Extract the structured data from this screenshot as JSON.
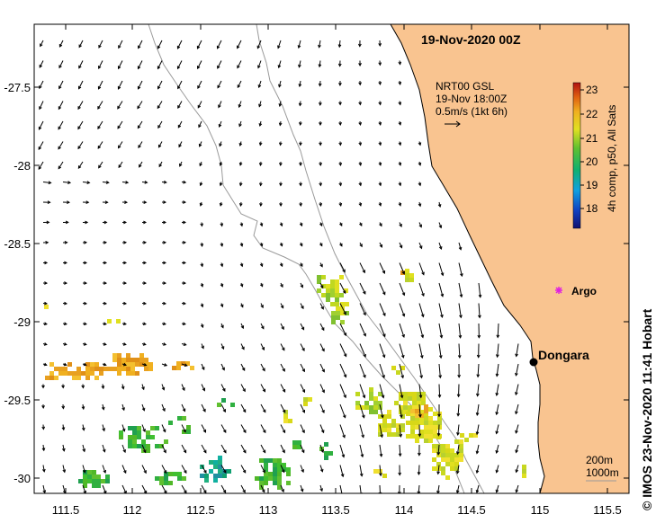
{
  "title": "19-Nov-2020 00Z",
  "current_product": {
    "line1": "NRT00 GSL",
    "line2": "19-Nov 18:00Z",
    "scale_label": "0.5m/s (1kt 6h)"
  },
  "colorbar": {
    "label": "4h comp, p50, All Sats",
    "ticks": [
      "23",
      "22",
      "21",
      "20",
      "19",
      "18"
    ],
    "range": [
      17.5,
      23.2
    ]
  },
  "x_ticks": [
    "111.5",
    "112",
    "112.5",
    "113",
    "113.5",
    "114",
    "114.5",
    "115",
    "115.5"
  ],
  "y_ticks": [
    "-27.5",
    "-28",
    "-28.5",
    "-29",
    "-29.5",
    "-30"
  ],
  "places": {
    "dongara": "Dongara",
    "argo": "Argo"
  },
  "isobaths": {
    "line1": "200m",
    "line2": "1000m"
  },
  "credit": "© IMOS 23-Nov-2020 11:41 Hobart",
  "colors": {
    "land": "#f9c490",
    "coast": "#000000",
    "isobath": "#9a9a9a",
    "argo": "#e020e0",
    "dongara_marker": "#000000"
  }
}
